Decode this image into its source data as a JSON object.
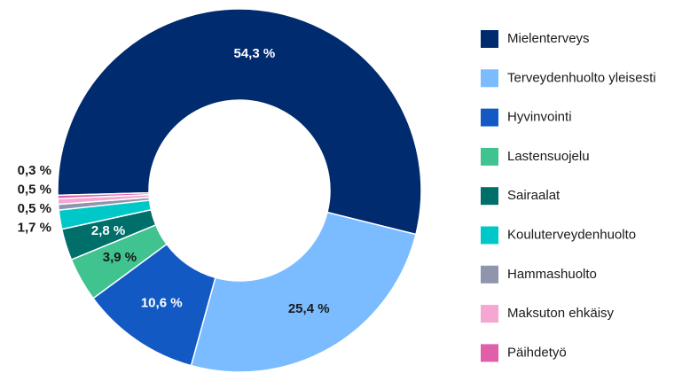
{
  "chart_data": {
    "type": "donut",
    "categories": [
      "Mielenterveys",
      "Terveydenhuolto yleisesti",
      "Hyvinvointi",
      "Lastensuojelu",
      "Sairaalat",
      "Kouluterveydenhuolto",
      "Hammashuolto",
      "Maksuton ehkäisy",
      "Päihdetyö"
    ],
    "values": [
      54.3,
      25.4,
      10.6,
      3.9,
      2.8,
      1.7,
      0.5,
      0.5,
      0.3
    ],
    "value_labels": [
      "54,3 %",
      "25,4 %",
      "10,6 %",
      "3,9 %",
      "2,8 %",
      "1,7 %",
      "0,5 %",
      "0,5 %",
      "0,3 %"
    ],
    "colors": [
      "#002b6e",
      "#7abcff",
      "#1259c3",
      "#40c38f",
      "#006f6a",
      "#00c8c8",
      "#8f95ac",
      "#f5a6d2",
      "#e05fa8"
    ],
    "legend": "right"
  }
}
